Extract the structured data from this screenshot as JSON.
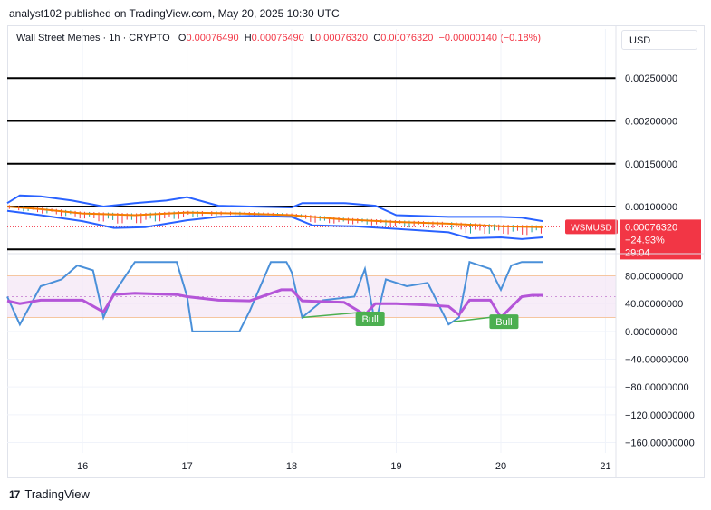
{
  "header": {
    "published": "analyst102 published on TradingView.com, May 20, 2025 10:30 UTC"
  },
  "legend": {
    "symbol": "Wall Street Memes · 1h · CRYPTO",
    "open_label": "O",
    "open": "0.00076490",
    "high_label": "H",
    "high": "0.00076490",
    "low_label": "L",
    "low": "0.00076320",
    "close_label": "C",
    "close": "0.00076320",
    "change": "−0.00000140 (−0.18%)"
  },
  "currency": "USD",
  "price_tag": {
    "ticker": "WSMUSD",
    "price": "0.00076320",
    "change": "−24.93%",
    "countdown": "29:04"
  },
  "footer": {
    "brand": "TradingView"
  },
  "colors": {
    "up": "#26a69a",
    "down": "#f23645",
    "band": "#2962ff",
    "ma": "#f57c00",
    "stoch": "#4a90d9",
    "rsi": "#b455d8",
    "bull": "#4caf50"
  },
  "chart_data": [
    {
      "type": "line",
      "price_axis": {
        "ticks": [
          "0.00250000",
          "0.00200000",
          "0.00150000",
          "0.00100000"
        ],
        "tick_values": [
          0.0025,
          0.002,
          0.0015,
          0.001
        ],
        "ylim": [
          0.00045,
          0.00282
        ]
      },
      "time_axis": {
        "ticks": [
          "16",
          "17",
          "18",
          "19",
          "20",
          "21"
        ],
        "tick_days": [
          16,
          17,
          18,
          19,
          20,
          21
        ],
        "xlim": [
          15.28,
          21.1
        ]
      },
      "horizontal_levels": [
        0.0025,
        0.002,
        0.0015,
        0.001,
        0.0005
      ],
      "series": [
        {
          "role": "upper_band",
          "x": [
            15.28,
            15.4,
            15.6,
            15.9,
            16.2,
            16.5,
            16.8,
            17.0,
            17.3,
            17.6,
            18.0,
            18.1,
            18.5,
            18.8,
            19.0,
            19.5,
            20.0,
            20.2,
            20.4
          ],
          "y": [
            0.00104,
            0.00113,
            0.00112,
            0.00107,
            0.001,
            0.00104,
            0.00107,
            0.00111,
            0.00101,
            0.001,
            0.00099,
            0.00104,
            0.00104,
            0.00101,
            0.0009,
            0.00088,
            0.00088,
            0.00087,
            0.00083
          ]
        },
        {
          "role": "moving_average",
          "x": [
            15.28,
            15.6,
            16.0,
            16.5,
            17.0,
            17.5,
            18.0,
            18.5,
            19.0,
            19.5,
            20.0,
            20.4
          ],
          "y": [
            0.001,
            0.00097,
            0.00092,
            0.0009,
            0.00093,
            0.00092,
            0.0009,
            0.00085,
            0.00082,
            0.0008,
            0.00077,
            0.00076
          ]
        },
        {
          "role": "lower_band",
          "x": [
            15.28,
            15.6,
            16.0,
            16.3,
            16.6,
            17.0,
            17.3,
            17.6,
            18.0,
            18.2,
            18.6,
            19.0,
            19.5,
            19.7,
            20.0,
            20.2,
            20.4
          ],
          "y": [
            0.00095,
            0.0009,
            0.00083,
            0.00075,
            0.00076,
            0.00084,
            0.00088,
            0.00089,
            0.00088,
            0.00078,
            0.00077,
            0.00074,
            0.0007,
            0.00063,
            0.00064,
            0.00062,
            0.00064
          ]
        }
      ],
      "last_price": 0.0007632
    },
    {
      "type": "line",
      "oscillator_axis": {
        "ticks": [
          "80.00000000",
          "40.00000000",
          "0.00000000",
          "−40.00000000",
          "−80.00000000",
          "−120.00000000",
          "−160.00000000"
        ],
        "tick_values": [
          80,
          40,
          0,
          -40,
          -80,
          -120,
          -160
        ],
        "ylim": [
          -175,
          112
        ]
      },
      "band": [
        20,
        80
      ],
      "series": [
        {
          "role": "stochastic",
          "x": [
            15.28,
            15.4,
            15.6,
            15.8,
            15.95,
            16.1,
            16.2,
            16.3,
            16.5,
            16.7,
            16.9,
            17.0,
            17.05,
            17.1,
            17.3,
            17.5,
            17.6,
            17.8,
            17.95,
            18.0,
            18.1,
            18.3,
            18.6,
            18.7,
            18.8,
            18.9,
            19.1,
            19.3,
            19.45,
            19.5,
            19.6,
            19.7,
            19.9,
            20.0,
            20.1,
            20.2,
            20.3,
            20.4
          ],
          "y": [
            50,
            10,
            65,
            75,
            95,
            88,
            20,
            55,
            100,
            100,
            100,
            50,
            0,
            0,
            0,
            0,
            30,
            100,
            100,
            85,
            20,
            45,
            50,
            90,
            10,
            75,
            65,
            70,
            25,
            10,
            20,
            100,
            90,
            60,
            95,
            100,
            100,
            100
          ]
        },
        {
          "role": "rsi",
          "x": [
            15.28,
            15.4,
            15.6,
            16.0,
            16.2,
            16.3,
            16.5,
            16.9,
            17.0,
            17.3,
            17.6,
            17.9,
            18.0,
            18.1,
            18.5,
            18.7,
            18.8,
            19.0,
            19.3,
            19.5,
            19.6,
            19.7,
            19.9,
            20.0,
            20.2,
            20.3,
            20.4
          ],
          "y": [
            44,
            40,
            45,
            45,
            28,
            53,
            55,
            53,
            50,
            45,
            44,
            60,
            60,
            44,
            42,
            24,
            40,
            40,
            38,
            36,
            24,
            45,
            45,
            20,
            50,
            52,
            52
          ]
        },
        {
          "role": "divergence",
          "x": [
            18.1,
            18.7
          ],
          "y": [
            20,
            28
          ]
        },
        {
          "role": "divergence",
          "x": [
            19.55,
            20.0
          ],
          "y": [
            14,
            22
          ]
        }
      ],
      "annotations": [
        {
          "text": "Bull",
          "x": 18.75,
          "y": 18
        },
        {
          "text": "Bull",
          "x": 20.03,
          "y": 14
        }
      ]
    }
  ]
}
